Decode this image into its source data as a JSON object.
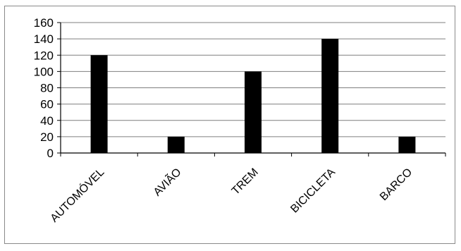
{
  "chart_data": {
    "type": "bar",
    "categories": [
      "AUTOMÓVEL",
      "AVIÃO",
      "TREM",
      "BICICLETA",
      "BARCO"
    ],
    "values": [
      120,
      20,
      100,
      140,
      20
    ],
    "ylim": [
      0,
      160
    ],
    "yticks": [
      0,
      20,
      40,
      60,
      80,
      100,
      120,
      140,
      160
    ],
    "grid": true,
    "legend": "none",
    "bar_color": "#000000",
    "grid_color": "#7f7f7f"
  }
}
